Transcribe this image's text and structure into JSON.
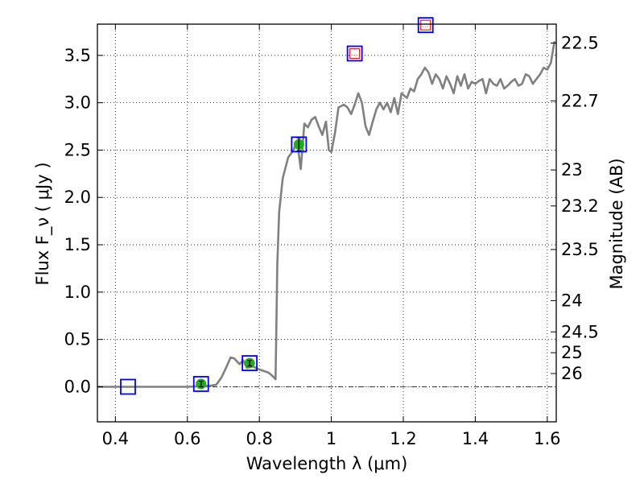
{
  "chart_data": {
    "type": "line",
    "title": "",
    "xlabel": "Wavelength  λ (μm)",
    "ylabel": "Flux  F_ν  ( μJy )",
    "y2label": "Magnitude (AB)",
    "xlim": [
      0.35,
      1.625
    ],
    "ylim": [
      -0.37,
      3.83
    ],
    "grid": true,
    "x_ticks": [
      {
        "value": 0.4,
        "label": "0.4"
      },
      {
        "value": 0.6,
        "label": "0.6"
      },
      {
        "value": 0.8,
        "label": "0.8"
      },
      {
        "value": 1.0,
        "label": "1"
      },
      {
        "value": 1.2,
        "label": "1.2"
      },
      {
        "value": 1.4,
        "label": "1.4"
      },
      {
        "value": 1.6,
        "label": "1.6"
      }
    ],
    "y_ticks": [
      {
        "value": 0.0,
        "label": "0.0"
      },
      {
        "value": 0.5,
        "label": "0.5"
      },
      {
        "value": 1.0,
        "label": "1.0"
      },
      {
        "value": 1.5,
        "label": "1.5"
      },
      {
        "value": 2.0,
        "label": "2.0"
      },
      {
        "value": 2.5,
        "label": "2.5"
      },
      {
        "value": 3.0,
        "label": "3.0"
      },
      {
        "value": 3.5,
        "label": "3.5"
      }
    ],
    "y2_ticks": [
      {
        "flux": 3.63,
        "label": "22.5"
      },
      {
        "flux": 3.02,
        "label": "22.7"
      },
      {
        "flux": 2.29,
        "label": "23"
      },
      {
        "flux": 1.91,
        "label": "23.2"
      },
      {
        "flux": 1.45,
        "label": "23.5"
      },
      {
        "flux": 0.91,
        "label": "24"
      },
      {
        "flux": 0.58,
        "label": "24.5"
      },
      {
        "flux": 0.36,
        "label": "25"
      },
      {
        "flux": 0.14,
        "label": "26"
      }
    ],
    "series": [
      {
        "color": "#808080",
        "points": [
          [
            0.35,
            0.0
          ],
          [
            0.6,
            0.0
          ],
          [
            0.66,
            0.01
          ],
          [
            0.68,
            0.02
          ],
          [
            0.695,
            0.1
          ],
          [
            0.71,
            0.22
          ],
          [
            0.72,
            0.31
          ],
          [
            0.73,
            0.3
          ],
          [
            0.745,
            0.24
          ],
          [
            0.755,
            0.28
          ],
          [
            0.765,
            0.2
          ],
          [
            0.78,
            0.22
          ],
          [
            0.795,
            0.19
          ],
          [
            0.81,
            0.17
          ],
          [
            0.825,
            0.15
          ],
          [
            0.835,
            0.12
          ],
          [
            0.845,
            0.08
          ],
          [
            0.85,
            1.3
          ],
          [
            0.855,
            1.85
          ],
          [
            0.865,
            2.2
          ],
          [
            0.88,
            2.42
          ],
          [
            0.895,
            2.5
          ],
          [
            0.905,
            2.6
          ],
          [
            0.915,
            2.3
          ],
          [
            0.925,
            2.78
          ],
          [
            0.935,
            2.74
          ],
          [
            0.945,
            2.82
          ],
          [
            0.955,
            2.85
          ],
          [
            0.965,
            2.75
          ],
          [
            0.975,
            2.66
          ],
          [
            0.985,
            2.8
          ],
          [
            0.993,
            2.5
          ],
          [
            1.0,
            2.48
          ],
          [
            1.01,
            2.68
          ],
          [
            1.02,
            2.95
          ],
          [
            1.035,
            2.98
          ],
          [
            1.045,
            2.95
          ],
          [
            1.055,
            2.88
          ],
          [
            1.065,
            2.98
          ],
          [
            1.075,
            3.1
          ],
          [
            1.085,
            3.0
          ],
          [
            1.095,
            2.75
          ],
          [
            1.105,
            2.66
          ],
          [
            1.115,
            2.8
          ],
          [
            1.125,
            2.93
          ],
          [
            1.135,
            3.0
          ],
          [
            1.145,
            2.93
          ],
          [
            1.155,
            3.0
          ],
          [
            1.165,
            2.9
          ],
          [
            1.175,
            3.05
          ],
          [
            1.185,
            2.88
          ],
          [
            1.195,
            3.1
          ],
          [
            1.21,
            3.05
          ],
          [
            1.22,
            3.15
          ],
          [
            1.23,
            3.12
          ],
          [
            1.24,
            3.25
          ],
          [
            1.25,
            3.3
          ],
          [
            1.26,
            3.37
          ],
          [
            1.27,
            3.32
          ],
          [
            1.28,
            3.2
          ],
          [
            1.29,
            3.3
          ],
          [
            1.3,
            3.25
          ],
          [
            1.31,
            3.15
          ],
          [
            1.32,
            3.28
          ],
          [
            1.33,
            3.2
          ],
          [
            1.34,
            3.1
          ],
          [
            1.35,
            3.28
          ],
          [
            1.36,
            3.18
          ],
          [
            1.37,
            3.3
          ],
          [
            1.38,
            3.15
          ],
          [
            1.39,
            3.22
          ],
          [
            1.4,
            3.2
          ],
          [
            1.41,
            3.23
          ],
          [
            1.42,
            3.25
          ],
          [
            1.43,
            3.1
          ],
          [
            1.44,
            3.25
          ],
          [
            1.45,
            3.2
          ],
          [
            1.46,
            3.18
          ],
          [
            1.47,
            3.25
          ],
          [
            1.48,
            3.15
          ],
          [
            1.49,
            3.18
          ],
          [
            1.5,
            3.22
          ],
          [
            1.51,
            3.25
          ],
          [
            1.52,
            3.18
          ],
          [
            1.53,
            3.2
          ],
          [
            1.54,
            3.3
          ],
          [
            1.55,
            3.28
          ],
          [
            1.56,
            3.2
          ],
          [
            1.57,
            3.25
          ],
          [
            1.58,
            3.3
          ],
          [
            1.59,
            3.37
          ],
          [
            1.6,
            3.35
          ],
          [
            1.61,
            3.42
          ],
          [
            1.62,
            3.65
          ]
        ]
      }
    ],
    "photometry": [
      {
        "x": 0.435,
        "y": 0.0,
        "err": 0.0,
        "box_color": "#0000ff",
        "marker": "none"
      },
      {
        "x": 0.638,
        "y": 0.03,
        "err": 0.03,
        "box_color": "#0000ff",
        "marker": "circle",
        "marker_color": "#22aa22"
      },
      {
        "x": 0.773,
        "y": 0.25,
        "err": 0.03,
        "box_color": "#0000ff",
        "marker": "circle",
        "marker_color": "#22aa22"
      },
      {
        "x": 0.91,
        "y": 2.56,
        "err": 0.07,
        "box_color": "#0000ff",
        "marker": "circle",
        "marker_color": "#22aa22"
      },
      {
        "x": 1.065,
        "y": 3.52,
        "err": 0.0,
        "box_color": "#0000ff",
        "marker": "square",
        "marker_color": "#dd2222"
      },
      {
        "x": 1.262,
        "y": 3.82,
        "err": 0.0,
        "box_color": "#0000ff",
        "marker": "square",
        "marker_color": "#dd2222"
      }
    ],
    "zero_line": {
      "y": 0.0,
      "style": "dash-dot"
    }
  }
}
